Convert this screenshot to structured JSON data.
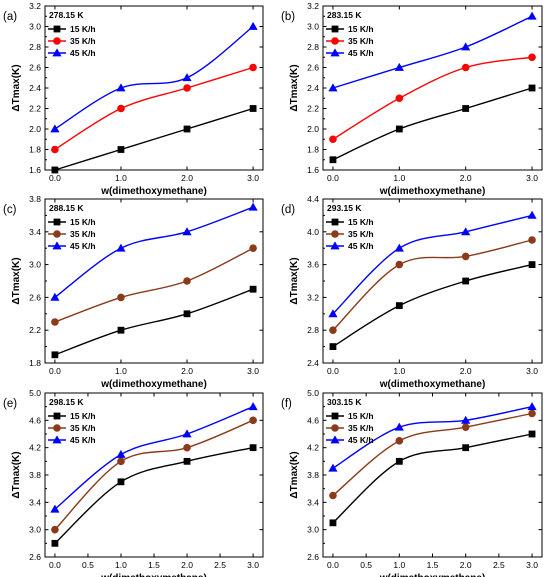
{
  "colors": {
    "s15": "#000000",
    "s35_red": "#ff0000",
    "s35_brown": "#8b3a1a",
    "s45": "#0000ff"
  },
  "chart_data": [
    {
      "type": "line",
      "panel": "(a)",
      "temperature": "278.15 K",
      "xlabel": "w(dimethoxymethane)",
      "ylabel": "ΔTmax(K)",
      "x": [
        0.0,
        1.0,
        2.0,
        3.0
      ],
      "xticks": [
        "0.0",
        "1.0",
        "2.0",
        "3.0"
      ],
      "yticks": [
        "1.6",
        "1.8",
        "2.0",
        "2.2",
        "2.4",
        "2.6",
        "2.8",
        "3.0",
        "3.2"
      ],
      "ylim": [
        1.6,
        3.2
      ],
      "legend": "top-left",
      "series": [
        {
          "name": "15 K/h",
          "marker": "square",
          "color": "#000000",
          "values": [
            1.6,
            1.8,
            2.0,
            2.2
          ]
        },
        {
          "name": "35 K/h",
          "marker": "circle",
          "color": "#ff0000",
          "values": [
            1.8,
            2.2,
            2.4,
            2.6
          ]
        },
        {
          "name": "45 K/h",
          "marker": "triangle",
          "color": "#0000ff",
          "values": [
            2.0,
            2.4,
            2.5,
            3.0
          ]
        }
      ]
    },
    {
      "type": "line",
      "panel": "(b)",
      "temperature": "283.15 K",
      "xlabel": "w(dimethoxymethane)",
      "ylabel": "ΔTmax(K)",
      "x": [
        0.0,
        1.0,
        2.0,
        3.0
      ],
      "xticks": [
        "0.0",
        "1.0",
        "2.0",
        "3.0"
      ],
      "yticks": [
        "1.6",
        "1.8",
        "2.0",
        "2.2",
        "2.4",
        "2.6",
        "2.8",
        "3.0",
        "3.2"
      ],
      "ylim": [
        1.6,
        3.2
      ],
      "legend": "top-left",
      "series": [
        {
          "name": "15 K/h",
          "marker": "square",
          "color": "#000000",
          "values": [
            1.7,
            2.0,
            2.2,
            2.4
          ]
        },
        {
          "name": "35 K/h",
          "marker": "circle",
          "color": "#ff0000",
          "values": [
            1.9,
            2.3,
            2.6,
            2.7
          ]
        },
        {
          "name": "45 K/h",
          "marker": "triangle",
          "color": "#0000ff",
          "values": [
            2.4,
            2.6,
            2.8,
            3.1
          ]
        }
      ]
    },
    {
      "type": "line",
      "panel": "(c)",
      "temperature": "288.15 K",
      "xlabel": "w(dimethoxymethane)",
      "ylabel": "ΔTmax(K)",
      "x": [
        0.0,
        1.0,
        2.0,
        3.0
      ],
      "xticks": [
        "0.0",
        "1.0",
        "2.0",
        "3.0"
      ],
      "yticks": [
        "1.8",
        "2.2",
        "2.6",
        "3.0",
        "3.4",
        "3.8"
      ],
      "ylim": [
        1.8,
        3.8
      ],
      "legend": "top-left",
      "series": [
        {
          "name": "15 K/h",
          "marker": "square",
          "color": "#000000",
          "values": [
            1.9,
            2.2,
            2.4,
            2.7
          ]
        },
        {
          "name": "35 K/h",
          "marker": "circle",
          "color": "#8b3a1a",
          "values": [
            2.3,
            2.6,
            2.8,
            3.2
          ]
        },
        {
          "name": "45 K/h",
          "marker": "triangle",
          "color": "#0000ff",
          "values": [
            2.6,
            3.2,
            3.4,
            3.7
          ]
        }
      ]
    },
    {
      "type": "line",
      "panel": "(d)",
      "temperature": "293.15 K",
      "xlabel": "w(dimethoxymethane)",
      "ylabel": "ΔTmax(K)",
      "x": [
        0.0,
        1.0,
        2.0,
        3.0
      ],
      "xticks": [
        "0.0",
        "1.0",
        "2.0",
        "3.0"
      ],
      "yticks": [
        "2.4",
        "2.8",
        "3.2",
        "3.6",
        "4.0",
        "4.4"
      ],
      "ylim": [
        2.4,
        4.4
      ],
      "legend": "top-left",
      "series": [
        {
          "name": "15 K/h",
          "marker": "square",
          "color": "#000000",
          "values": [
            2.6,
            3.1,
            3.4,
            3.6
          ]
        },
        {
          "name": "35 K/h",
          "marker": "circle",
          "color": "#8b3a1a",
          "values": [
            2.8,
            3.6,
            3.7,
            3.9
          ]
        },
        {
          "name": "45 K/h",
          "marker": "triangle",
          "color": "#0000ff",
          "values": [
            3.0,
            3.8,
            4.0,
            4.2
          ]
        }
      ]
    },
    {
      "type": "line",
      "panel": "(e)",
      "temperature": "298.15 K",
      "xlabel": "w(dimethoxymethane)",
      "ylabel": "ΔTmax(K)",
      "x": [
        0.0,
        1.0,
        2.0,
        3.0
      ],
      "xticks": [
        "0.0",
        "0.5",
        "1.0",
        "1.5",
        "2.0",
        "2.5",
        "3.0"
      ],
      "yticks": [
        "2.6",
        "3.0",
        "3.4",
        "3.8",
        "4.2",
        "4.6",
        "5.0"
      ],
      "ylim": [
        2.6,
        5.0
      ],
      "legend": "top-left",
      "series": [
        {
          "name": "15 K/h",
          "marker": "square",
          "color": "#000000",
          "values": [
            2.8,
            3.7,
            4.0,
            4.2
          ]
        },
        {
          "name": "35 K/h",
          "marker": "circle",
          "color": "#8b3a1a",
          "values": [
            3.0,
            4.0,
            4.2,
            4.6
          ]
        },
        {
          "name": "45 K/h",
          "marker": "triangle",
          "color": "#0000ff",
          "values": [
            3.3,
            4.1,
            4.4,
            4.8
          ]
        }
      ]
    },
    {
      "type": "line",
      "panel": "(f)",
      "temperature": "303.15 K",
      "xlabel": "w(dimethoxymethane)",
      "ylabel": "ΔTmax(K)",
      "x": [
        0.0,
        1.0,
        2.0,
        3.0
      ],
      "xticks": [
        "0.0",
        "0.5",
        "1.0",
        "1.5",
        "2.0",
        "2.5",
        "3.0"
      ],
      "yticks": [
        "2.6",
        "3.0",
        "3.4",
        "3.8",
        "4.2",
        "4.6",
        "5.0"
      ],
      "ylim": [
        2.6,
        5.0
      ],
      "legend": "top-left",
      "series": [
        {
          "name": "15 K/h",
          "marker": "square",
          "color": "#000000",
          "values": [
            3.1,
            4.0,
            4.2,
            4.4
          ]
        },
        {
          "name": "35 K/h",
          "marker": "circle",
          "color": "#8b3a1a",
          "values": [
            3.5,
            4.3,
            4.5,
            4.7
          ]
        },
        {
          "name": "45 K/h",
          "marker": "triangle",
          "color": "#0000ff",
          "values": [
            3.9,
            4.5,
            4.6,
            4.8
          ]
        }
      ]
    }
  ]
}
